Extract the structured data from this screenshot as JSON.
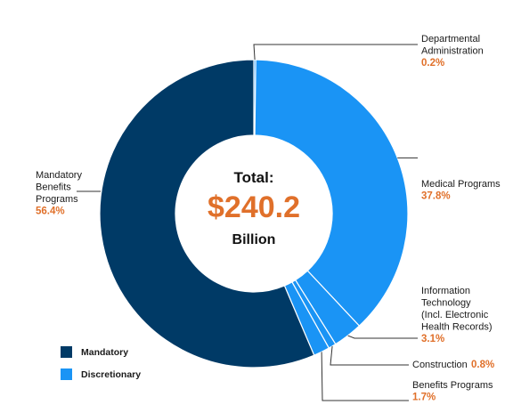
{
  "chart_data": {
    "type": "pie",
    "donut": true,
    "center": {
      "title": "Total:",
      "value": "$240.2",
      "unit": "Billion"
    },
    "slices": [
      {
        "name": "Departmental Administration",
        "label_lines": [
          "Departmental",
          "Administration"
        ],
        "pct_label": "0.2%",
        "value": 0.2,
        "group": "Discretionary"
      },
      {
        "name": "Medical Programs",
        "label_lines": [
          "Medical Programs"
        ],
        "pct_label": "37.8%",
        "value": 37.8,
        "group": "Discretionary"
      },
      {
        "name": "Information Technology (Incl. Electronic Health Records)",
        "label_lines": [
          "Information",
          "Technology",
          "(Incl. Electronic",
          "Health Records)"
        ],
        "pct_label": "3.1%",
        "value": 3.1,
        "group": "Discretionary"
      },
      {
        "name": "Construction",
        "label_lines": [
          "Construction"
        ],
        "pct_label": "0.8%",
        "value": 0.8,
        "group": "Discretionary"
      },
      {
        "name": "Benefits Programs",
        "label_lines": [
          "Benefits Programs"
        ],
        "pct_label": "1.7%",
        "value": 1.7,
        "group": "Discretionary"
      },
      {
        "name": "Mandatory Benefits Programs",
        "label_lines": [
          "Mandatory",
          "Benefits",
          "Programs"
        ],
        "pct_label": "56.4%",
        "value": 56.4,
        "group": "Mandatory"
      }
    ],
    "legend": {
      "placement": "bottom-left",
      "entries": [
        {
          "name": "Mandatory",
          "color": "#003a66"
        },
        {
          "name": "Discretionary",
          "color": "#1a94f5"
        }
      ]
    },
    "colors": {
      "Mandatory": "#003a66",
      "Discretionary": "#1a94f5"
    }
  }
}
